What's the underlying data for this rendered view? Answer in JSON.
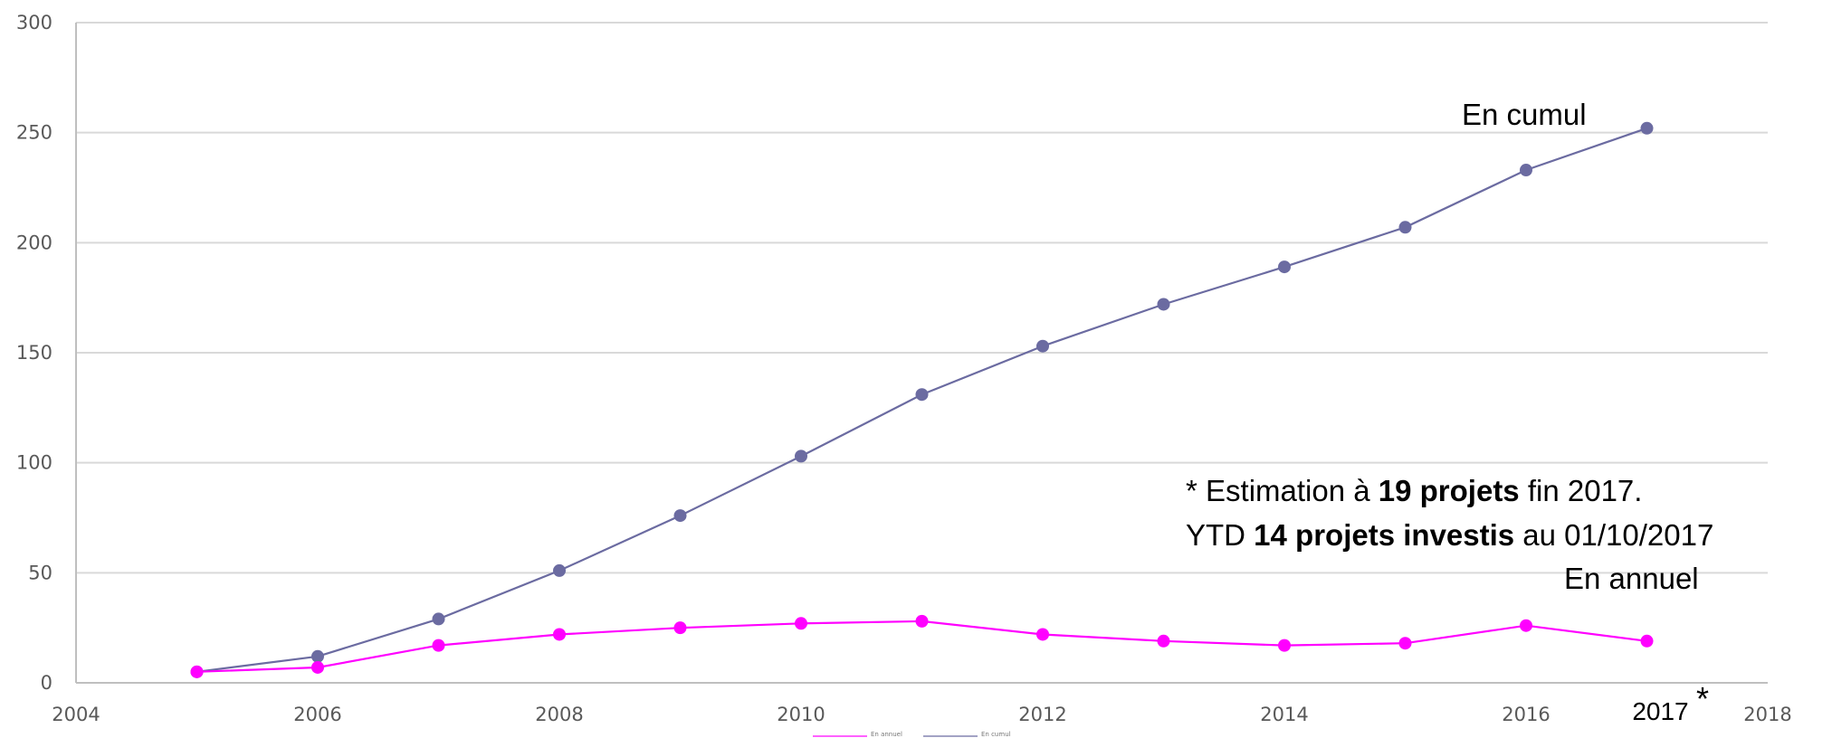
{
  "chart_data": {
    "type": "line",
    "xlim": [
      2004,
      2018
    ],
    "ylim": [
      0,
      300
    ],
    "x_ticks": [
      "2004",
      "2006",
      "2008",
      "2010",
      "2012",
      "2014",
      "2016",
      "2017",
      "2018"
    ],
    "y_ticks": [
      "0",
      "50",
      "100",
      "150",
      "200",
      "250",
      "300"
    ],
    "grid": "horizontal",
    "x": [
      2005,
      2006,
      2007,
      2008,
      2009,
      2010,
      2011,
      2012,
      2013,
      2014,
      2015,
      2016,
      2017
    ],
    "series": [
      {
        "name": "En cumul",
        "color": "#6b6ba1",
        "values": [
          5,
          12,
          29,
          51,
          76,
          103,
          131,
          153,
          172,
          189,
          207,
          233,
          252
        ]
      },
      {
        "name": "En annuel",
        "color": "#ff00ff",
        "values": [
          5,
          7,
          17,
          22,
          25,
          27,
          28,
          22,
          19,
          17,
          18,
          26,
          19
        ]
      }
    ],
    "annotations": {
      "star": "*",
      "note_line1": [
        "* Estimation à ",
        "19 projets",
        " fin 2017."
      ],
      "note_line2": [
        "YTD ",
        "14 projets investis",
        " au 01/10/2017"
      ]
    },
    "legend": {
      "position": "bottom",
      "entries": [
        "En annuel",
        "En cumul"
      ]
    }
  }
}
